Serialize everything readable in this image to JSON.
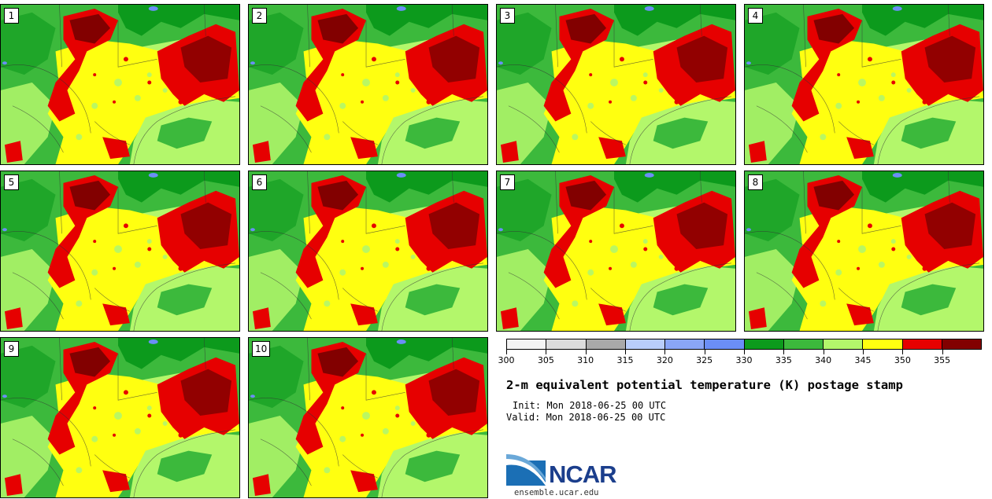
{
  "panels": [
    {
      "label": "1"
    },
    {
      "label": "2"
    },
    {
      "label": "3"
    },
    {
      "label": "4"
    },
    {
      "label": "5"
    },
    {
      "label": "6"
    },
    {
      "label": "7"
    },
    {
      "label": "8"
    },
    {
      "label": "9"
    },
    {
      "label": "10"
    }
  ],
  "colorbar": {
    "colors": [
      "#f4f4f4",
      "#dcdcdc",
      "#a9a9a9",
      "#b9cdfa",
      "#8aa6f7",
      "#6b8ef7",
      "#0c9a1c",
      "#3cb93c",
      "#b3f76b",
      "#ffff10",
      "#e60000",
      "#820000"
    ],
    "tick_labels": [
      "300",
      "305",
      "310",
      "315",
      "320",
      "325",
      "330",
      "335",
      "340",
      "345",
      "350",
      "355"
    ]
  },
  "title": "2-m equivalent potential temperature (K) postage stamp",
  "init": "Init: Mon 2018-06-25 00 UTC",
  "valid": "Valid: Mon 2018-06-25 00 UTC",
  "logo": {
    "name": "NCAR",
    "url": "ensemble.ucar.edu",
    "logo_color": "#1b3e8c"
  }
}
